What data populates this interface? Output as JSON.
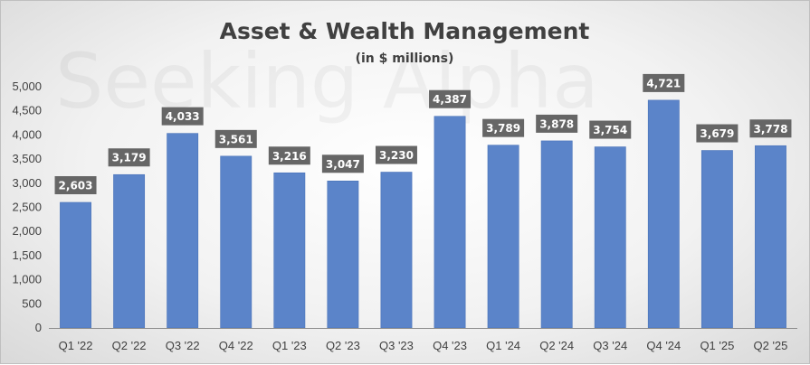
{
  "chart_data": {
    "type": "bar",
    "title": "Asset & Wealth Management",
    "subtitle": "(in $ millions)",
    "watermark": "Seeking Alpha",
    "categories": [
      "Q1 '22",
      "Q2 '22",
      "Q3 '22",
      "Q4 '22",
      "Q1 '23",
      "Q2 '23",
      "Q3 '23",
      "Q4 '23",
      "Q1 '24",
      "Q2 '24",
      "Q3 '24",
      "Q4 '24",
      "Q1 '25",
      "Q2 '25"
    ],
    "values": [
      2603,
      3179,
      4033,
      3561,
      3216,
      3047,
      3230,
      4387,
      3789,
      3878,
      3754,
      4721,
      3679,
      3778
    ],
    "value_labels": [
      "2,603",
      "3,179",
      "4,033",
      "3,561",
      "3,216",
      "3,047",
      "3,230",
      "4,387",
      "3,789",
      "3,878",
      "3,754",
      "4,721",
      "3,679",
      "3,778"
    ],
    "y_ticks": [
      0,
      500,
      1000,
      1500,
      2000,
      2500,
      3000,
      3500,
      4000,
      4500,
      5000
    ],
    "y_tick_labels": [
      "0",
      "500",
      "1,000",
      "1,500",
      "2,000",
      "2,500",
      "3,000",
      "3,500",
      "4,000",
      "4,500",
      "5,000"
    ],
    "ylim": [
      0,
      5000
    ],
    "grid": false,
    "legend": "none",
    "colors": {
      "bar": "#5b84c9",
      "bar_stroke": "#4a73b8",
      "label_box": "#666666",
      "label_text": "#ffffff",
      "axis": "#8c8c8c",
      "text": "#404040"
    }
  }
}
